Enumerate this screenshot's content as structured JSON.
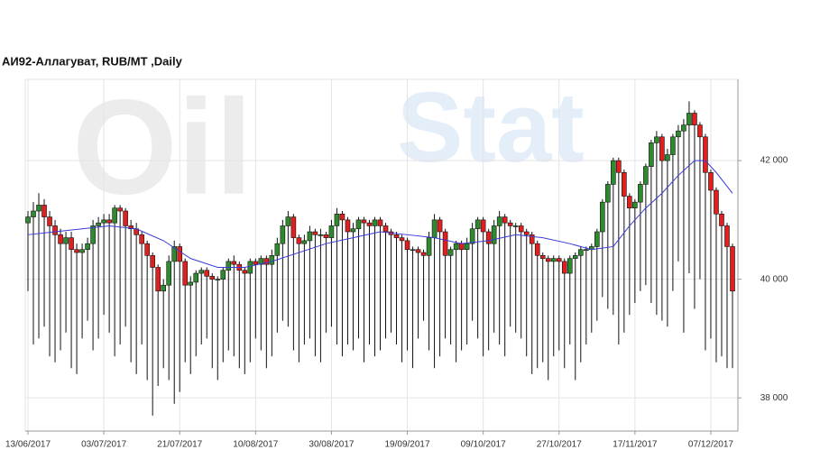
{
  "chart_data": {
    "type": "candlestick",
    "title": "АИ92-Аллагуват,  RUB/MT ,Daily",
    "watermark": [
      "Oil",
      "Stat"
    ],
    "up_color": "#2f8a2f",
    "down_color": "#e0201e",
    "ma_color": "#3a3ad8",
    "grid": true,
    "ylim": [
      37440,
      43370
    ],
    "yticks": [
      {
        "value": 38000,
        "label": "38 000"
      },
      {
        "value": 40000,
        "label": "40 000"
      },
      {
        "value": 42000,
        "label": "42 000"
      }
    ],
    "xlim": [
      -0.5,
      131
    ],
    "xticks": [
      {
        "value": 0,
        "label": "13/06/2017"
      },
      {
        "value": 14,
        "label": "03/07/2017"
      },
      {
        "value": 28,
        "label": "21/07/2017"
      },
      {
        "value": 42,
        "label": "10/08/2017"
      },
      {
        "value": 56,
        "label": "30/08/2017"
      },
      {
        "value": 70,
        "label": "19/09/2017"
      },
      {
        "value": 84,
        "label": "09/10/2017"
      },
      {
        "value": 98,
        "label": "27/10/2017"
      },
      {
        "value": 112,
        "label": "17/11/2017"
      },
      {
        "value": 126,
        "label": "07/12/2017"
      }
    ],
    "open": [
      40950,
      41050,
      41150,
      41250,
      41050,
      40900,
      40750,
      40600,
      40700,
      40500,
      40450,
      40500,
      40600,
      40900,
      40950,
      41000,
      40950,
      41200,
      41150,
      40900,
      40850,
      40750,
      40600,
      40400,
      40200,
      39800,
      39900,
      40300,
      40550,
      40300,
      39900,
      39950,
      40100,
      40150,
      40050,
      40000,
      40000,
      40150,
      40300,
      40250,
      40150,
      40100,
      40300,
      40250,
      40350,
      40250,
      40400,
      40600,
      40900,
      41050,
      40700,
      40600,
      40650,
      40800,
      40750,
      40750,
      40700,
      40900,
      41100,
      41000,
      40800,
      40850,
      41000,
      40950,
      40900,
      41000,
      40900,
      40800,
      40750,
      40700,
      40650,
      40500,
      40500,
      40450,
      40400,
      40700,
      41000,
      40800,
      40400,
      40500,
      40600,
      40500,
      40600,
      40850,
      41000,
      40800,
      40600,
      40900,
      41050,
      40950,
      40900,
      40900,
      40800,
      40750,
      40600,
      40400,
      40350,
      40300,
      40350,
      40300,
      40100,
      40350,
      40400,
      40500,
      40500,
      40550,
      40800,
      41300,
      41600,
      42000,
      41800,
      41400,
      41200,
      41300,
      41600,
      41900,
      42300,
      42400,
      42000,
      42100,
      42400,
      42500,
      42600,
      42800,
      42600,
      42400,
      41800,
      41500,
      41100,
      40900,
      40550
    ],
    "high": [
      41150,
      41300,
      41450,
      41350,
      41150,
      41000,
      40850,
      40800,
      40800,
      40600,
      40600,
      40700,
      41000,
      41050,
      41100,
      41100,
      41250,
      41250,
      41200,
      41000,
      40950,
      40800,
      40650,
      40450,
      40250,
      40000,
      40400,
      40650,
      40600,
      40350,
      40050,
      40150,
      40200,
      40200,
      40100,
      40050,
      40200,
      40350,
      40400,
      40300,
      40200,
      40350,
      40350,
      40400,
      40400,
      40500,
      40700,
      41000,
      41150,
      41100,
      40750,
      40750,
      40900,
      40850,
      40850,
      40800,
      41000,
      41200,
      41150,
      41050,
      40950,
      41050,
      41050,
      41000,
      41050,
      41050,
      40950,
      40850,
      40800,
      40750,
      40700,
      40550,
      40550,
      40500,
      40800,
      41100,
      41050,
      40850,
      40550,
      40650,
      40650,
      40700,
      40950,
      41050,
      41050,
      40850,
      41000,
      41150,
      41100,
      41000,
      40950,
      40950,
      40850,
      40800,
      40650,
      40450,
      40400,
      40400,
      40400,
      40350,
      40400,
      40450,
      40550,
      40550,
      40600,
      40850,
      41350,
      41650,
      42050,
      42050,
      41850,
      41450,
      41350,
      41650,
      41950,
      42350,
      42500,
      42450,
      42200,
      42450,
      42600,
      42700,
      43000,
      42850,
      42650,
      42450,
      41850,
      41550,
      41150,
      40950,
      40600
    ],
    "low": [
      39800,
      38900,
      39000,
      39200,
      38700,
      38600,
      38800,
      39100,
      38500,
      38400,
      39000,
      39300,
      38800,
      39000,
      39400,
      39100,
      38700,
      38900,
      39200,
      38600,
      38400,
      38900,
      38300,
      37700,
      38200,
      38500,
      38300,
      37900,
      38100,
      38600,
      38400,
      38700,
      38900,
      39000,
      38500,
      38300,
      38600,
      38800,
      38700,
      38500,
      38400,
      38600,
      39000,
      38800,
      38500,
      38700,
      39100,
      39300,
      39200,
      38800,
      38600,
      38900,
      39000,
      38700,
      38600,
      39100,
      39200,
      38900,
      38700,
      38900,
      38800,
      39000,
      38600,
      38900,
      38700,
      38800,
      39000,
      39100,
      38900,
      38600,
      38800,
      38500,
      39000,
      39300,
      38800,
      38500,
      38700,
      39000,
      38900,
      38600,
      38800,
      38900,
      39300,
      39000,
      38700,
      38800,
      39100,
      38900,
      38700,
      39200,
      39100,
      39000,
      38700,
      38400,
      38500,
      38600,
      38300,
      38700,
      38800,
      38500,
      38900,
      38300,
      38600,
      38900,
      39100,
      39300,
      39700,
      39500,
      39400,
      38900,
      39100,
      39400,
      39600,
      39800,
      39900,
      39600,
      39400,
      39300,
      39200,
      39800,
      40300,
      39100,
      40100,
      39500,
      40000,
      38800,
      39000,
      38600,
      38700,
      38500,
      38500
    ],
    "close": [
      41050,
      41150,
      41250,
      41050,
      40900,
      40750,
      40600,
      40700,
      40500,
      40450,
      40500,
      40600,
      40900,
      40950,
      41000,
      40950,
      41200,
      41150,
      40900,
      40850,
      40750,
      40600,
      40400,
      40200,
      39800,
      39900,
      40300,
      40550,
      40300,
      39900,
      39950,
      40100,
      40150,
      40050,
      40000,
      40000,
      40150,
      40300,
      40250,
      40150,
      40100,
      40300,
      40250,
      40350,
      40250,
      40400,
      40600,
      40900,
      41050,
      40700,
      40600,
      40650,
      40800,
      40750,
      40750,
      40700,
      40900,
      41100,
      41000,
      40800,
      40850,
      41000,
      40950,
      40900,
      41000,
      40900,
      40800,
      40750,
      40700,
      40650,
      40500,
      40500,
      40450,
      40400,
      40700,
      41000,
      40800,
      40400,
      40500,
      40600,
      40500,
      40600,
      40850,
      41000,
      40800,
      40600,
      40900,
      41050,
      40950,
      40900,
      40900,
      40800,
      40750,
      40600,
      40400,
      40350,
      40300,
      40350,
      40300,
      40100,
      40350,
      40400,
      40500,
      40500,
      40550,
      40800,
      41300,
      41600,
      42000,
      41800,
      41400,
      41200,
      41300,
      41600,
      41900,
      42300,
      42400,
      42000,
      42100,
      42400,
      42500,
      42600,
      42800,
      42600,
      42400,
      41800,
      41500,
      41100,
      40900,
      40550,
      39800
    ],
    "ma": {
      "x": [
        0,
        5,
        10,
        15,
        20,
        25,
        30,
        35,
        40,
        45,
        50,
        55,
        60,
        65,
        70,
        75,
        80,
        85,
        90,
        95,
        100,
        104,
        108,
        111,
        114,
        117,
        120,
        123,
        125,
        127,
        130
      ],
      "values": [
        40750,
        40800,
        40850,
        40900,
        40850,
        40650,
        40350,
        40200,
        40200,
        40300,
        40450,
        40600,
        40700,
        40800,
        40750,
        40700,
        40600,
        40650,
        40750,
        40700,
        40600,
        40500,
        40550,
        40900,
        41200,
        41450,
        41750,
        42000,
        42000,
        41800,
        41450
      ]
    }
  }
}
